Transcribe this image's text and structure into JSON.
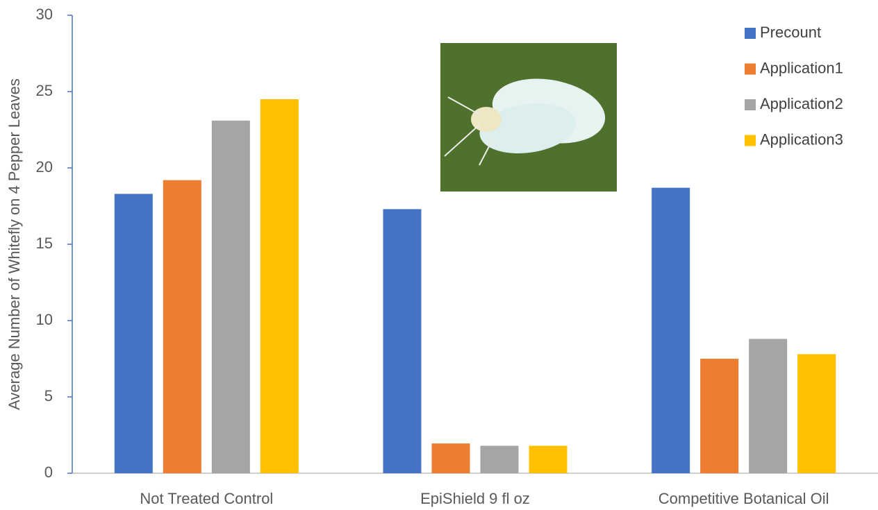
{
  "chart_data": {
    "type": "bar",
    "y_label": "Average Number of Whitefly on 4 Pepper Leaves",
    "categories": [
      "Not Treated Control",
      "EpiShield 9 fl oz",
      "Competitive Botanical Oil"
    ],
    "series": [
      {
        "name": "Precount",
        "color": "#4472c4",
        "values": [
          18.3,
          17.3,
          18.7
        ]
      },
      {
        "name": "Application1",
        "color": "#ed7d31",
        "values": [
          19.2,
          1.95,
          7.5
        ]
      },
      {
        "name": "Application2",
        "color": "#a5a5a5",
        "values": [
          23.1,
          1.8,
          8.8
        ]
      },
      {
        "name": "Application3",
        "color": "#ffc000",
        "values": [
          24.5,
          1.8,
          7.8
        ]
      }
    ],
    "ylim": [
      0,
      30
    ],
    "yticks": [
      0,
      5,
      10,
      15,
      20,
      25,
      30
    ],
    "grid": false,
    "legend": "upper-right"
  }
}
